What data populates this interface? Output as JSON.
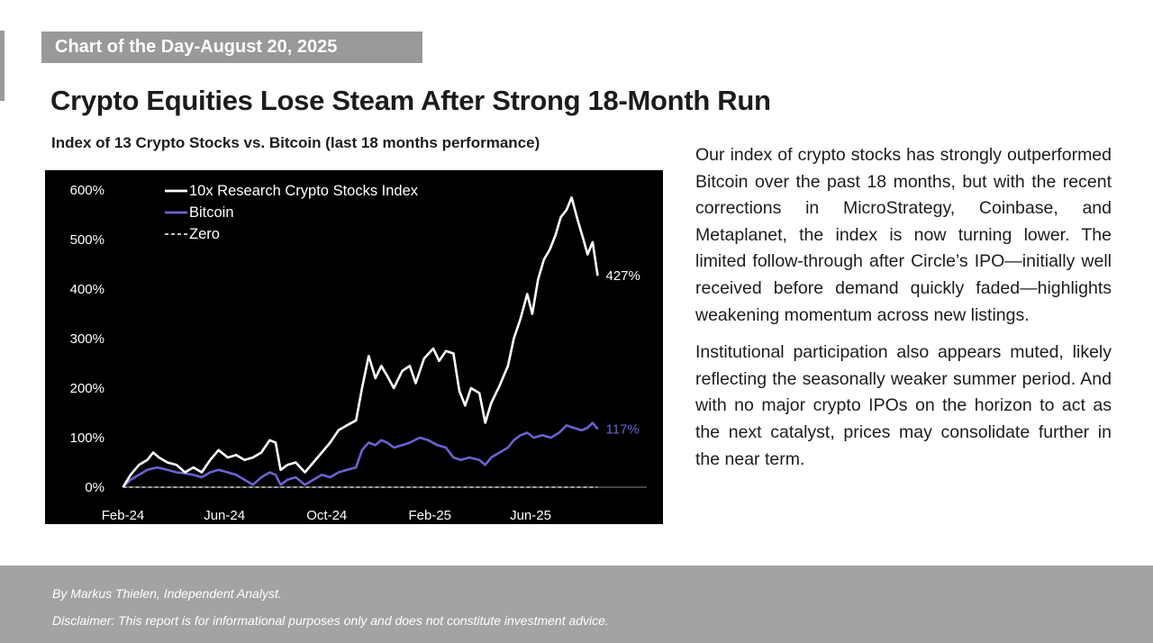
{
  "header": {
    "banner": "Chart of the Day-August 20, 2025",
    "headline": "Crypto Equities Lose Steam After Strong 18-Month Run",
    "chart_subtitle": "Index of 13 Crypto Stocks vs. Bitcoin (last 18 months performance)"
  },
  "commentary": {
    "paragraphs": [
      "Our index of crypto stocks has strongly outperformed Bitcoin over the past 18 months, but with the recent corrections in MicroStrategy, Coinbase, and Metaplanet, the index is now turning lower. The limited follow-through after Circle’s IPO—initially well received before demand quickly faded—highlights weakening momentum across new listings.",
      "Institutional participation also appears muted, likely reflecting the seasonally weaker summer period. And with no major crypto IPOs on the horizon to act as the next catalyst, prices may consolidate further in the near term."
    ]
  },
  "footer": {
    "author": "By Markus Thielen, Independent Analyst.",
    "disclaimer": "Disclaimer: This report is for informational purposes only and does not constitute investment advice."
  },
  "chart_data": {
    "type": "line",
    "title": "Index of 13 Crypto Stocks vs. Bitcoin (last 18 months performance)",
    "background": "#000000",
    "ylim": [
      0,
      600
    ],
    "yticks": [
      0,
      100,
      200,
      300,
      400,
      500,
      600
    ],
    "ytick_labels": [
      "0%",
      "100%",
      "200%",
      "300%",
      "400%",
      "500%",
      "600%"
    ],
    "xlim": [
      "2024-02-01",
      "2025-08-20"
    ],
    "xticks": [
      "2024-02-01",
      "2024-06-01",
      "2024-10-01",
      "2025-02-01",
      "2025-06-01"
    ],
    "xtick_labels": [
      "Feb-24",
      "Jun-24",
      "Oct-24",
      "Feb-25",
      "Jun-25"
    ],
    "legend_position": "top-left",
    "grid": false,
    "series": [
      {
        "name": "10x Research Crypto Stocks Index",
        "color": "#ffffff",
        "style": "solid",
        "end_label": "427%",
        "points": [
          [
            "2024-02-01",
            0
          ],
          [
            "2024-02-10",
            25
          ],
          [
            "2024-02-20",
            45
          ],
          [
            "2024-03-01",
            55
          ],
          [
            "2024-03-08",
            70
          ],
          [
            "2024-03-15",
            60
          ],
          [
            "2024-03-25",
            50
          ],
          [
            "2024-04-05",
            45
          ],
          [
            "2024-04-15",
            30
          ],
          [
            "2024-04-25",
            40
          ],
          [
            "2024-05-05",
            30
          ],
          [
            "2024-05-15",
            55
          ],
          [
            "2024-05-25",
            75
          ],
          [
            "2024-06-05",
            60
          ],
          [
            "2024-06-15",
            65
          ],
          [
            "2024-06-25",
            55
          ],
          [
            "2024-07-05",
            60
          ],
          [
            "2024-07-15",
            70
          ],
          [
            "2024-07-25",
            95
          ],
          [
            "2024-08-01",
            90
          ],
          [
            "2024-08-07",
            35
          ],
          [
            "2024-08-15",
            45
          ],
          [
            "2024-08-25",
            50
          ],
          [
            "2024-09-05",
            30
          ],
          [
            "2024-09-15",
            50
          ],
          [
            "2024-09-25",
            70
          ],
          [
            "2024-10-05",
            90
          ],
          [
            "2024-10-15",
            115
          ],
          [
            "2024-10-25",
            125
          ],
          [
            "2024-11-05",
            135
          ],
          [
            "2024-11-12",
            200
          ],
          [
            "2024-11-20",
            265
          ],
          [
            "2024-11-28",
            220
          ],
          [
            "2024-12-05",
            245
          ],
          [
            "2024-12-12",
            225
          ],
          [
            "2024-12-20",
            200
          ],
          [
            "2024-12-30",
            235
          ],
          [
            "2025-01-08",
            245
          ],
          [
            "2025-01-15",
            210
          ],
          [
            "2025-01-25",
            260
          ],
          [
            "2025-02-05",
            280
          ],
          [
            "2025-02-12",
            255
          ],
          [
            "2025-02-20",
            275
          ],
          [
            "2025-03-01",
            270
          ],
          [
            "2025-03-08",
            195
          ],
          [
            "2025-03-15",
            165
          ],
          [
            "2025-03-22",
            200
          ],
          [
            "2025-04-01",
            190
          ],
          [
            "2025-04-08",
            130
          ],
          [
            "2025-04-15",
            170
          ],
          [
            "2025-04-25",
            205
          ],
          [
            "2025-05-05",
            245
          ],
          [
            "2025-05-12",
            300
          ],
          [
            "2025-05-20",
            340
          ],
          [
            "2025-05-28",
            390
          ],
          [
            "2025-06-03",
            350
          ],
          [
            "2025-06-10",
            420
          ],
          [
            "2025-06-17",
            460
          ],
          [
            "2025-06-24",
            480
          ],
          [
            "2025-07-01",
            510
          ],
          [
            "2025-07-07",
            545
          ],
          [
            "2025-07-14",
            560
          ],
          [
            "2025-07-20",
            585
          ],
          [
            "2025-07-27",
            540
          ],
          [
            "2025-08-03",
            500
          ],
          [
            "2025-08-08",
            470
          ],
          [
            "2025-08-14",
            495
          ],
          [
            "2025-08-20",
            427
          ]
        ]
      },
      {
        "name": "Bitcoin",
        "color": "#6a63d2",
        "style": "solid",
        "end_label": "117%",
        "points": [
          [
            "2024-02-01",
            0
          ],
          [
            "2024-02-10",
            15
          ],
          [
            "2024-02-20",
            25
          ],
          [
            "2024-03-01",
            35
          ],
          [
            "2024-03-13",
            40
          ],
          [
            "2024-03-25",
            35
          ],
          [
            "2024-04-05",
            30
          ],
          [
            "2024-04-15",
            28
          ],
          [
            "2024-04-25",
            25
          ],
          [
            "2024-05-05",
            20
          ],
          [
            "2024-05-15",
            30
          ],
          [
            "2024-05-25",
            35
          ],
          [
            "2024-06-05",
            30
          ],
          [
            "2024-06-15",
            25
          ],
          [
            "2024-06-25",
            15
          ],
          [
            "2024-07-05",
            5
          ],
          [
            "2024-07-15",
            20
          ],
          [
            "2024-07-25",
            30
          ],
          [
            "2024-08-01",
            25
          ],
          [
            "2024-08-07",
            5
          ],
          [
            "2024-08-15",
            15
          ],
          [
            "2024-08-25",
            20
          ],
          [
            "2024-09-05",
            5
          ],
          [
            "2024-09-15",
            15
          ],
          [
            "2024-09-25",
            25
          ],
          [
            "2024-10-05",
            20
          ],
          [
            "2024-10-15",
            30
          ],
          [
            "2024-10-25",
            35
          ],
          [
            "2024-11-05",
            40
          ],
          [
            "2024-11-12",
            75
          ],
          [
            "2024-11-20",
            90
          ],
          [
            "2024-11-28",
            85
          ],
          [
            "2024-12-05",
            95
          ],
          [
            "2024-12-12",
            90
          ],
          [
            "2024-12-20",
            80
          ],
          [
            "2024-12-30",
            85
          ],
          [
            "2025-01-08",
            90
          ],
          [
            "2025-01-20",
            100
          ],
          [
            "2025-01-30",
            95
          ],
          [
            "2025-02-10",
            85
          ],
          [
            "2025-02-20",
            80
          ],
          [
            "2025-03-01",
            60
          ],
          [
            "2025-03-10",
            55
          ],
          [
            "2025-03-20",
            60
          ],
          [
            "2025-04-01",
            55
          ],
          [
            "2025-04-08",
            45
          ],
          [
            "2025-04-15",
            60
          ],
          [
            "2025-04-25",
            70
          ],
          [
            "2025-05-05",
            80
          ],
          [
            "2025-05-12",
            95
          ],
          [
            "2025-05-20",
            105
          ],
          [
            "2025-05-28",
            110
          ],
          [
            "2025-06-05",
            100
          ],
          [
            "2025-06-15",
            105
          ],
          [
            "2025-06-25",
            100
          ],
          [
            "2025-07-05",
            110
          ],
          [
            "2025-07-14",
            125
          ],
          [
            "2025-07-22",
            120
          ],
          [
            "2025-08-01",
            115
          ],
          [
            "2025-08-08",
            120
          ],
          [
            "2025-08-14",
            130
          ],
          [
            "2025-08-20",
            117
          ]
        ]
      },
      {
        "name": "Zero",
        "color": "#ffffff",
        "style": "dashed",
        "points": [
          [
            "2024-02-01",
            0
          ],
          [
            "2025-08-20",
            0
          ]
        ]
      }
    ]
  }
}
